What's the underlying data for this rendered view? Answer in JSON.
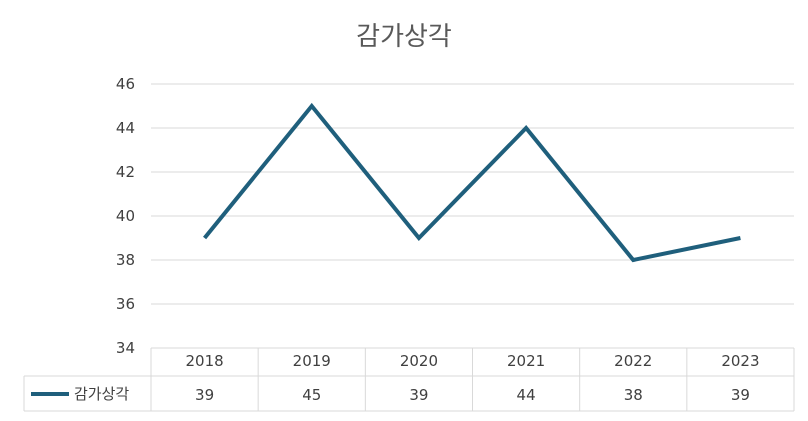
{
  "chart_data": {
    "type": "line",
    "title": "감가상각",
    "categories": [
      "2018",
      "2019",
      "2020",
      "2021",
      "2022",
      "2023"
    ],
    "series": [
      {
        "name": "감가상각",
        "values": [
          39,
          45,
          39,
          44,
          38,
          39
        ],
        "color": "#1f5f7c"
      }
    ],
    "ylim": [
      34,
      46
    ],
    "yticks": [
      "46",
      "44",
      "42",
      "40",
      "38",
      "36",
      "34"
    ],
    "grid": true,
    "legend": "data-table"
  }
}
